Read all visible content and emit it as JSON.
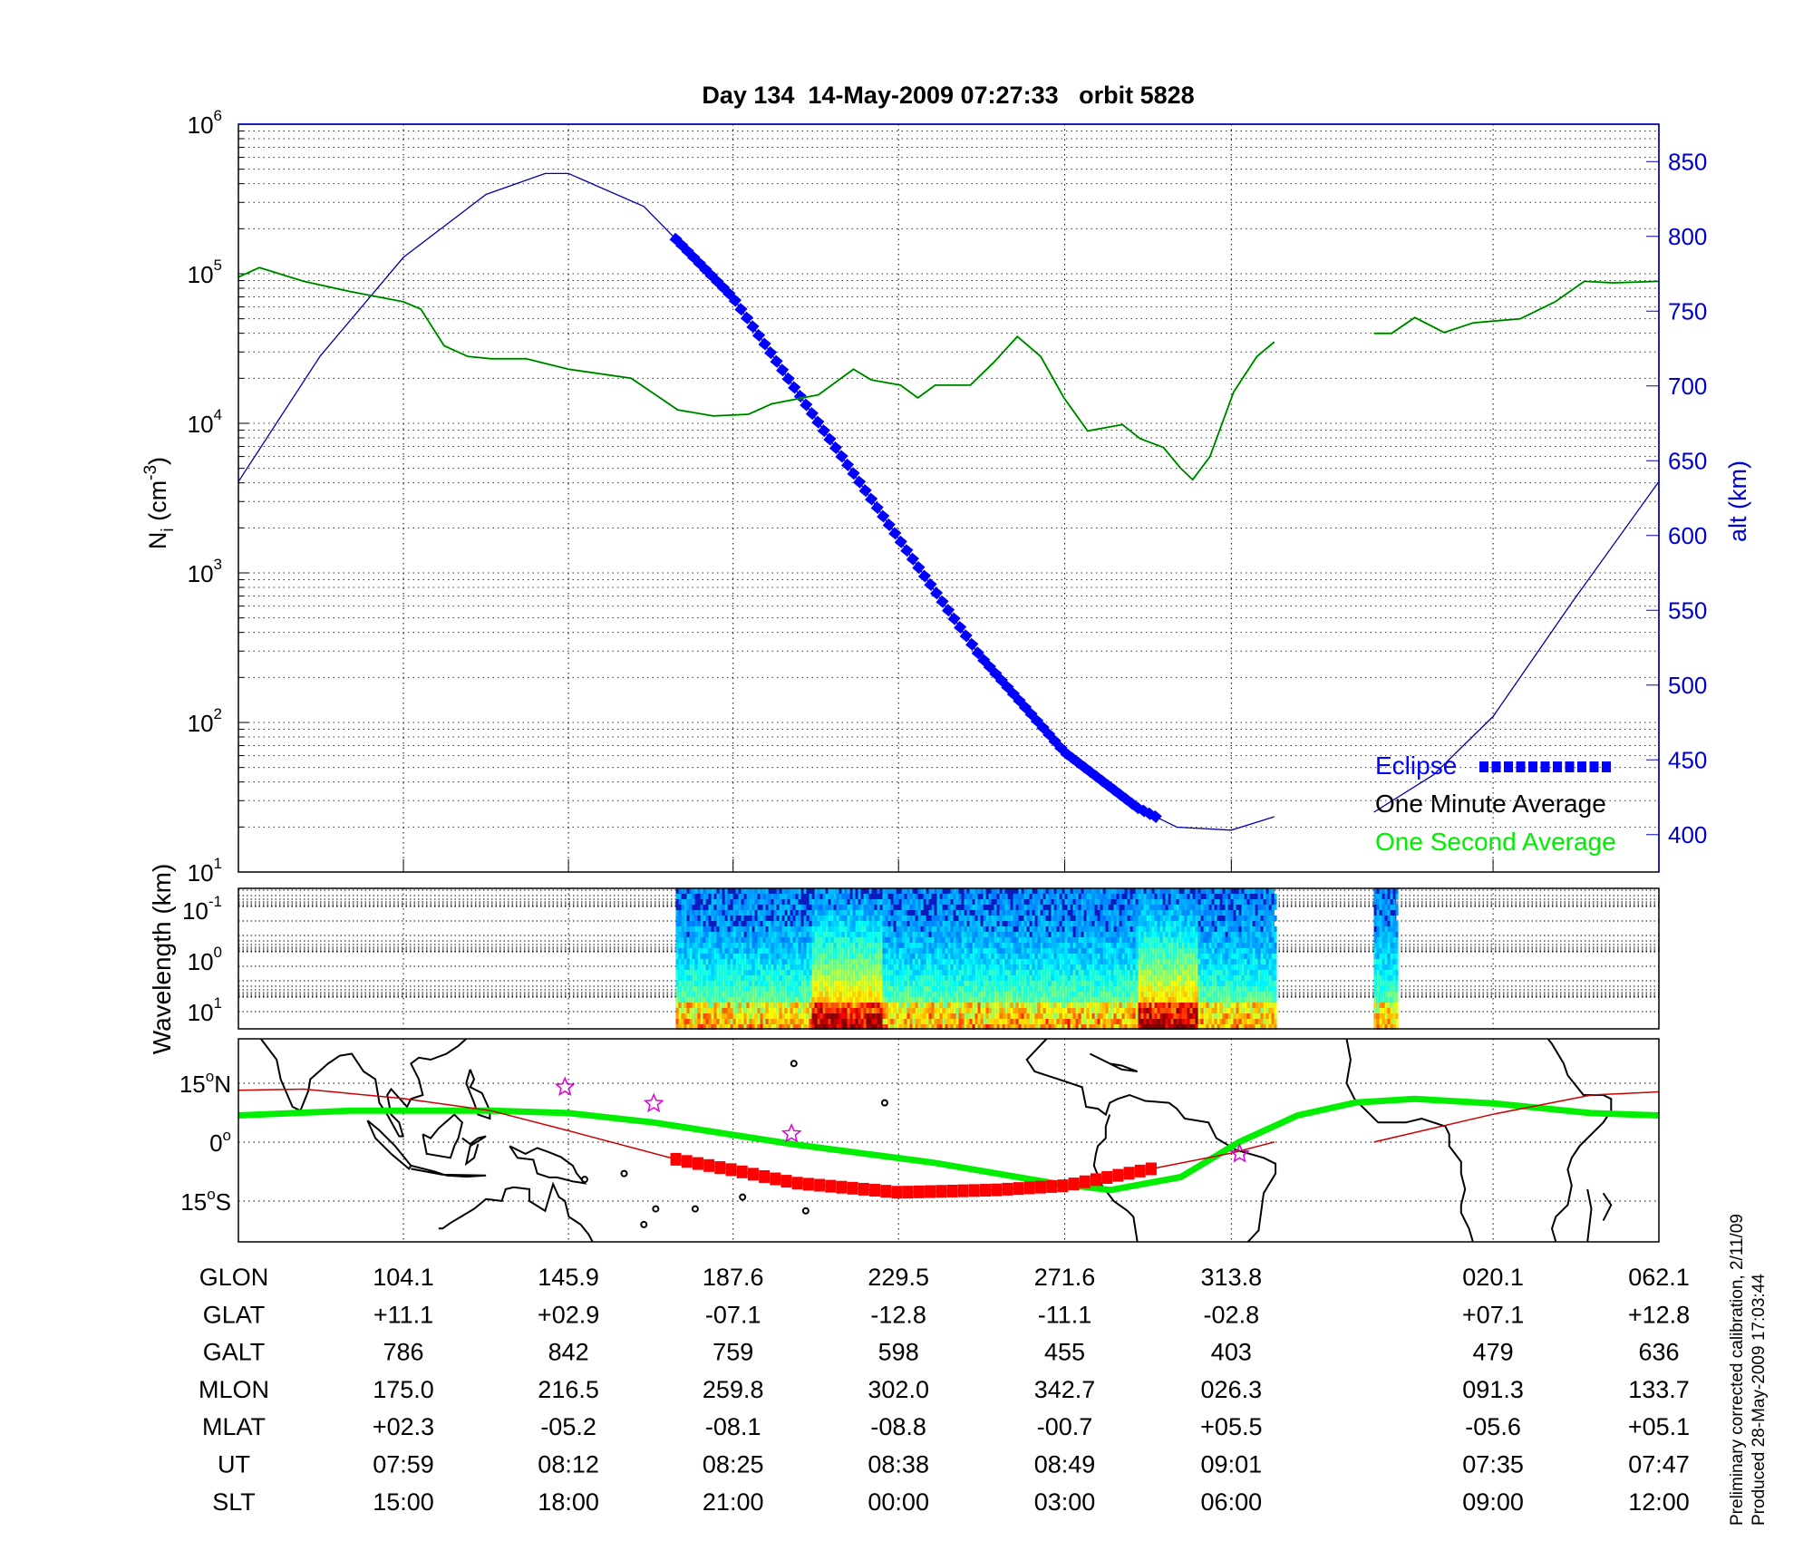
{
  "title": "Day 134  14-May-2009 07:27:33   orbit 5828",
  "footer": {
    "line1": "Preliminary corrected calibration, 2/11/09",
    "line2": "Produced 28-May-2009 17:03:44"
  },
  "colors": {
    "one_minute_average": "#006600",
    "one_second_average": "#00ee00",
    "altitude": "#0000aa",
    "eclipse": "#0000ff",
    "ground_track": "#cc0000",
    "eclipse_track": "#ff0000",
    "magnetic_equator": "#00ee00",
    "stars": "#dd00dd",
    "axis_right": "#0000cc"
  },
  "chart_data": [
    {
      "type": "line",
      "ylabel": "N",
      "ylabel_sub": "i",
      "ylabel_unit": " (cm",
      "ylabel_exp": "-3",
      "ylabel_close": ")",
      "yscale": "log",
      "ylim": [
        10,
        1000000
      ],
      "yticks": [
        {
          "base": "10",
          "exp": "1"
        },
        {
          "base": "10",
          "exp": "2"
        },
        {
          "base": "10",
          "exp": "3"
        },
        {
          "base": "10",
          "exp": "4"
        },
        {
          "base": "10",
          "exp": "5"
        },
        {
          "base": "10",
          "exp": "6"
        }
      ],
      "y2label": "alt (km)",
      "y2lim": [
        375,
        875
      ],
      "y2ticks": [
        400,
        450,
        500,
        550,
        600,
        650,
        700,
        750,
        800,
        850
      ],
      "xlim": [
        62.3,
        422.1
      ],
      "grid": true,
      "legend_placement": "bottom-right",
      "legend": [
        {
          "label": "Eclipse",
          "color": "#0000ff"
        },
        {
          "label": "One Minute Average",
          "color": "#000000"
        },
        {
          "label": "One Second Average",
          "color": "#00ee00"
        }
      ],
      "density_segments": [
        [
          [
            62.3,
            95000
          ],
          [
            67.6,
            110000
          ],
          [
            78.9,
            89000
          ],
          [
            90.7,
            76000
          ],
          [
            104.1,
            65000
          ],
          [
            108.5,
            58000
          ],
          [
            114.4,
            33000
          ],
          [
            120.4,
            28000
          ],
          [
            126.3,
            27000
          ],
          [
            135.2,
            27000
          ],
          [
            145.9,
            23000
          ],
          [
            161.8,
            20000
          ],
          [
            173.6,
            12300
          ],
          [
            182.6,
            11200
          ],
          [
            191.5,
            11500
          ],
          [
            197.4,
            13500
          ],
          [
            209.2,
            15500
          ],
          [
            218.1,
            23000
          ],
          [
            222.6,
            19500
          ],
          [
            230.0,
            18000
          ],
          [
            234.4,
            14800
          ],
          [
            238.8,
            18000
          ],
          [
            247.7,
            18000
          ],
          [
            253.7,
            25700
          ],
          [
            259.6,
            38000
          ],
          [
            265.5,
            28000
          ],
          [
            271.4,
            14800
          ],
          [
            277.4,
            8900
          ],
          [
            286.2,
            9800
          ],
          [
            290.7,
            7900
          ],
          [
            296.6,
            6900
          ],
          [
            301.0,
            5000
          ],
          [
            304.0,
            4200
          ],
          [
            308.4,
            6000
          ],
          [
            314.4,
            16200
          ],
          [
            320.3,
            28000
          ],
          [
            324.7,
            35000
          ]
        ],
        [
          [
            349.9,
            40000
          ],
          [
            354.4,
            40000
          ],
          [
            360.3,
            51000
          ],
          [
            367.7,
            40500
          ],
          [
            375.1,
            47000
          ],
          [
            387.0,
            50000
          ],
          [
            395.8,
            65000
          ],
          [
            403.2,
            89000
          ],
          [
            410.6,
            87000
          ],
          [
            422.1,
            89000
          ]
        ]
      ],
      "altitude_segments": [
        [
          [
            62.3,
            636
          ],
          [
            83,
            720
          ],
          [
            104.1,
            786
          ],
          [
            125,
            828
          ],
          [
            140,
            842
          ],
          [
            145.9,
            842
          ],
          [
            165,
            820
          ],
          [
            187.6,
            759
          ],
          [
            208,
            680
          ],
          [
            229.5,
            598
          ],
          [
            250,
            520
          ],
          [
            271.6,
            455
          ],
          [
            290,
            418
          ],
          [
            300,
            405
          ],
          [
            313.8,
            403
          ],
          [
            324.7,
            412
          ]
        ],
        [
          [
            349.9,
            415
          ],
          [
            365,
            440
          ],
          [
            380.1,
            479
          ],
          [
            400,
            555
          ],
          [
            422.1,
            636
          ]
        ]
      ],
      "eclipse_range": [
        173.1,
        295.1
      ]
    },
    {
      "type": "heatmap",
      "ylabel": "Wavelength (km)",
      "yscale": "log",
      "yticks": [
        {
          "base": "10",
          "exp": "-1"
        },
        {
          "base": "10",
          "exp": "0"
        },
        {
          "base": "10",
          "exp": "1"
        }
      ],
      "colormap": "jet",
      "data_ranges": [
        [
          173.1,
          324.7
        ],
        [
          349.9,
          355.6
        ]
      ],
      "enhanced_regions": [
        207,
        225,
        290,
        305
      ]
    },
    {
      "type": "map",
      "ylim": [
        -25.4,
        26.3
      ],
      "yticks": [
        {
          "value": 15,
          "label": "15",
          "hemi": "N"
        },
        {
          "value": 0,
          "label": "0",
          "hemi": ""
        },
        {
          "value": -15,
          "label": "15",
          "hemi": "S"
        }
      ],
      "ground_track_segments": [
        [
          [
            62.3,
            13.2
          ],
          [
            78.9,
            13.5
          ],
          [
            104.1,
            11.1
          ],
          [
            126.3,
            8.0
          ],
          [
            145.9,
            2.9
          ],
          [
            173.6,
            -4.5
          ],
          [
            187.6,
            -7.1
          ],
          [
            203.2,
            -10.4
          ],
          [
            229.5,
            -12.8
          ],
          [
            253.7,
            -12.2
          ],
          [
            271.6,
            -11.1
          ],
          [
            295.1,
            -6.5
          ],
          [
            313.8,
            -2.8
          ],
          [
            324.7,
            0.0
          ]
        ],
        [
          [
            349.9,
            0.0
          ],
          [
            380.1,
            7.1
          ],
          [
            405,
            12.0
          ],
          [
            422.1,
            12.8
          ]
        ]
      ],
      "magnetic_equator": [
        [
          62.3,
          6.8
        ],
        [
          90.7,
          8.0
        ],
        [
          126.3,
          8.0
        ],
        [
          145.9,
          7.4
        ],
        [
          167.5,
          5.0
        ],
        [
          203.2,
          -0.6
        ],
        [
          238.8,
          -5.3
        ],
        [
          268.4,
          -10.4
        ],
        [
          283.2,
          -12.2
        ],
        [
          301.0,
          -8.9
        ],
        [
          315.8,
          0.0
        ],
        [
          330.6,
          6.8
        ],
        [
          345.4,
          10.1
        ],
        [
          360.3,
          11.0
        ],
        [
          381.0,
          9.8
        ],
        [
          404.7,
          7.4
        ],
        [
          422.1,
          6.8
        ]
      ],
      "stars": [
        [
          145.0,
          14.0
        ],
        [
          167.5,
          9.8
        ],
        [
          202.4,
          2.1
        ],
        [
          315.9,
          -3.0
        ]
      ]
    }
  ],
  "table": {
    "tick_lons": [
      104.1,
      145.9,
      187.6,
      229.5,
      271.6,
      313.8,
      380.1,
      422.1
    ],
    "rows": [
      {
        "label": "GLON",
        "values": [
          "104.1",
          "145.9",
          "187.6",
          "229.5",
          "271.6",
          "313.8",
          "020.1",
          "062.1"
        ]
      },
      {
        "label": "GLAT",
        "values": [
          "+11.1",
          "+02.9",
          "-07.1",
          "-12.8",
          "-11.1",
          "-02.8",
          "+07.1",
          "+12.8"
        ]
      },
      {
        "label": "GALT",
        "values": [
          "786",
          "842",
          "759",
          "598",
          "455",
          "403",
          "479",
          "636"
        ]
      },
      {
        "label": "MLON",
        "values": [
          "175.0",
          "216.5",
          "259.8",
          "302.0",
          "342.7",
          "026.3",
          "091.3",
          "133.7"
        ]
      },
      {
        "label": "MLAT",
        "values": [
          "+02.3",
          "-05.2",
          "-08.1",
          "-08.8",
          "-00.7",
          "+05.5",
          "-05.6",
          "+05.1"
        ]
      },
      {
        "label": "UT",
        "values": [
          "07:59",
          "08:12",
          "08:25",
          "08:38",
          "08:49",
          "09:01",
          "07:35",
          "07:47"
        ]
      },
      {
        "label": "SLT",
        "values": [
          "15:00",
          "18:00",
          "21:00",
          "00:00",
          "03:00",
          "06:00",
          "09:00",
          "12:00"
        ]
      }
    ]
  }
}
